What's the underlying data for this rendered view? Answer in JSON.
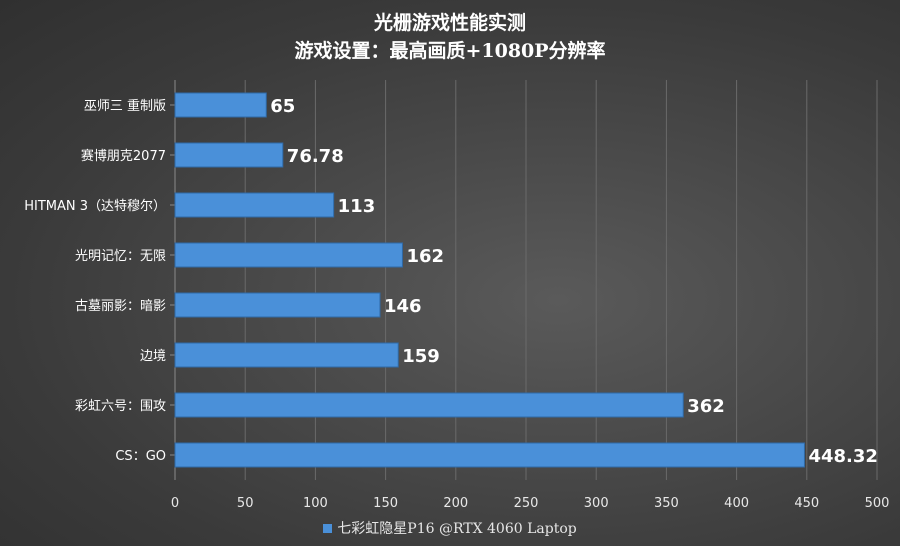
{
  "chart_data": {
    "type": "bar",
    "orientation": "horizontal",
    "title": "光栅游戏性能实测",
    "subtitle": "游戏设置：最高画质+1080P分辨率",
    "categories": [
      "巫师三 重制版",
      "赛博朋克2077",
      "HITMAN 3（达特穆尔）",
      "光明记忆：无限",
      "古墓丽影：暗影",
      "边境",
      "彩虹六号：围攻",
      "CS：GO"
    ],
    "series": [
      {
        "name": "七彩虹隐星P16 @RTX 4060 Laptop",
        "values": [
          65,
          76.78,
          113,
          162,
          146,
          159,
          362,
          448.32
        ],
        "labels": [
          "65",
          "76.78",
          "113",
          "162",
          "146",
          "159",
          "362",
          "448.32"
        ]
      }
    ],
    "xlim": [
      0,
      500
    ],
    "xticks": [
      "0",
      "50",
      "100",
      "150",
      "200",
      "250",
      "300",
      "350",
      "400",
      "450",
      "500"
    ],
    "grid": "vertical",
    "legend_position": "bottom",
    "bar_color": "#4a90d9"
  }
}
